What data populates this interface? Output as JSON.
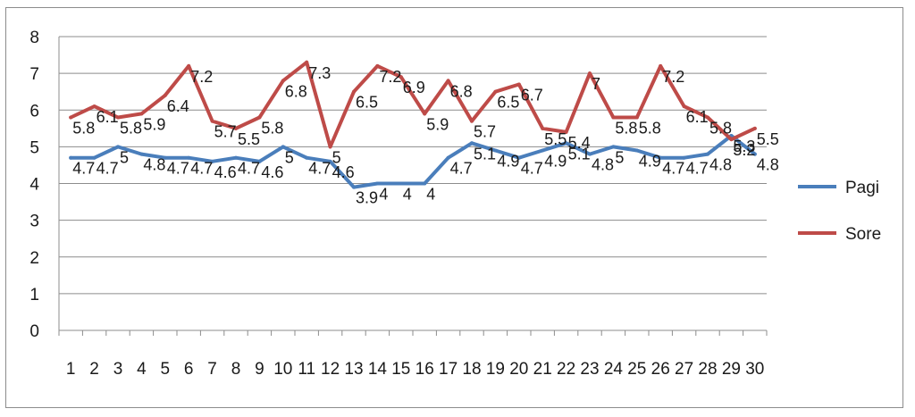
{
  "chart_data": {
    "type": "line",
    "title": "",
    "xlabel": "",
    "ylabel": "",
    "categories": [
      "1",
      "2",
      "3",
      "4",
      "5",
      "6",
      "7",
      "8",
      "9",
      "10",
      "11",
      "12",
      "13",
      "14",
      "15",
      "16",
      "17",
      "18",
      "19",
      "20",
      "21",
      "22",
      "23",
      "24",
      "25",
      "26",
      "27",
      "28",
      "29",
      "30"
    ],
    "ylim": [
      0,
      8
    ],
    "yticks": [
      0,
      1,
      2,
      3,
      4,
      5,
      6,
      7,
      8
    ],
    "grid": true,
    "legend_position": "right",
    "data_labels": true,
    "series": [
      {
        "name": "Pagi",
        "color": "#4a7ebb",
        "values": [
          4.7,
          4.7,
          5,
          4.8,
          4.7,
          4.7,
          4.6,
          4.7,
          4.6,
          5,
          4.7,
          4.6,
          3.9,
          4,
          4,
          4,
          4.7,
          5.1,
          4.9,
          4.7,
          4.9,
          5.1,
          4.8,
          5,
          4.9,
          4.7,
          4.7,
          4.8,
          5.3,
          4.8
        ]
      },
      {
        "name": "Sore",
        "color": "#be4b48",
        "values": [
          5.8,
          6.1,
          5.8,
          5.9,
          6.4,
          7.2,
          5.7,
          5.5,
          5.8,
          6.8,
          7.3,
          5,
          6.5,
          7.2,
          6.9,
          5.9,
          6.8,
          5.7,
          6.5,
          6.7,
          5.5,
          5.4,
          7,
          5.8,
          5.8,
          7.2,
          6.1,
          5.8,
          5.2,
          5.5
        ]
      }
    ]
  }
}
